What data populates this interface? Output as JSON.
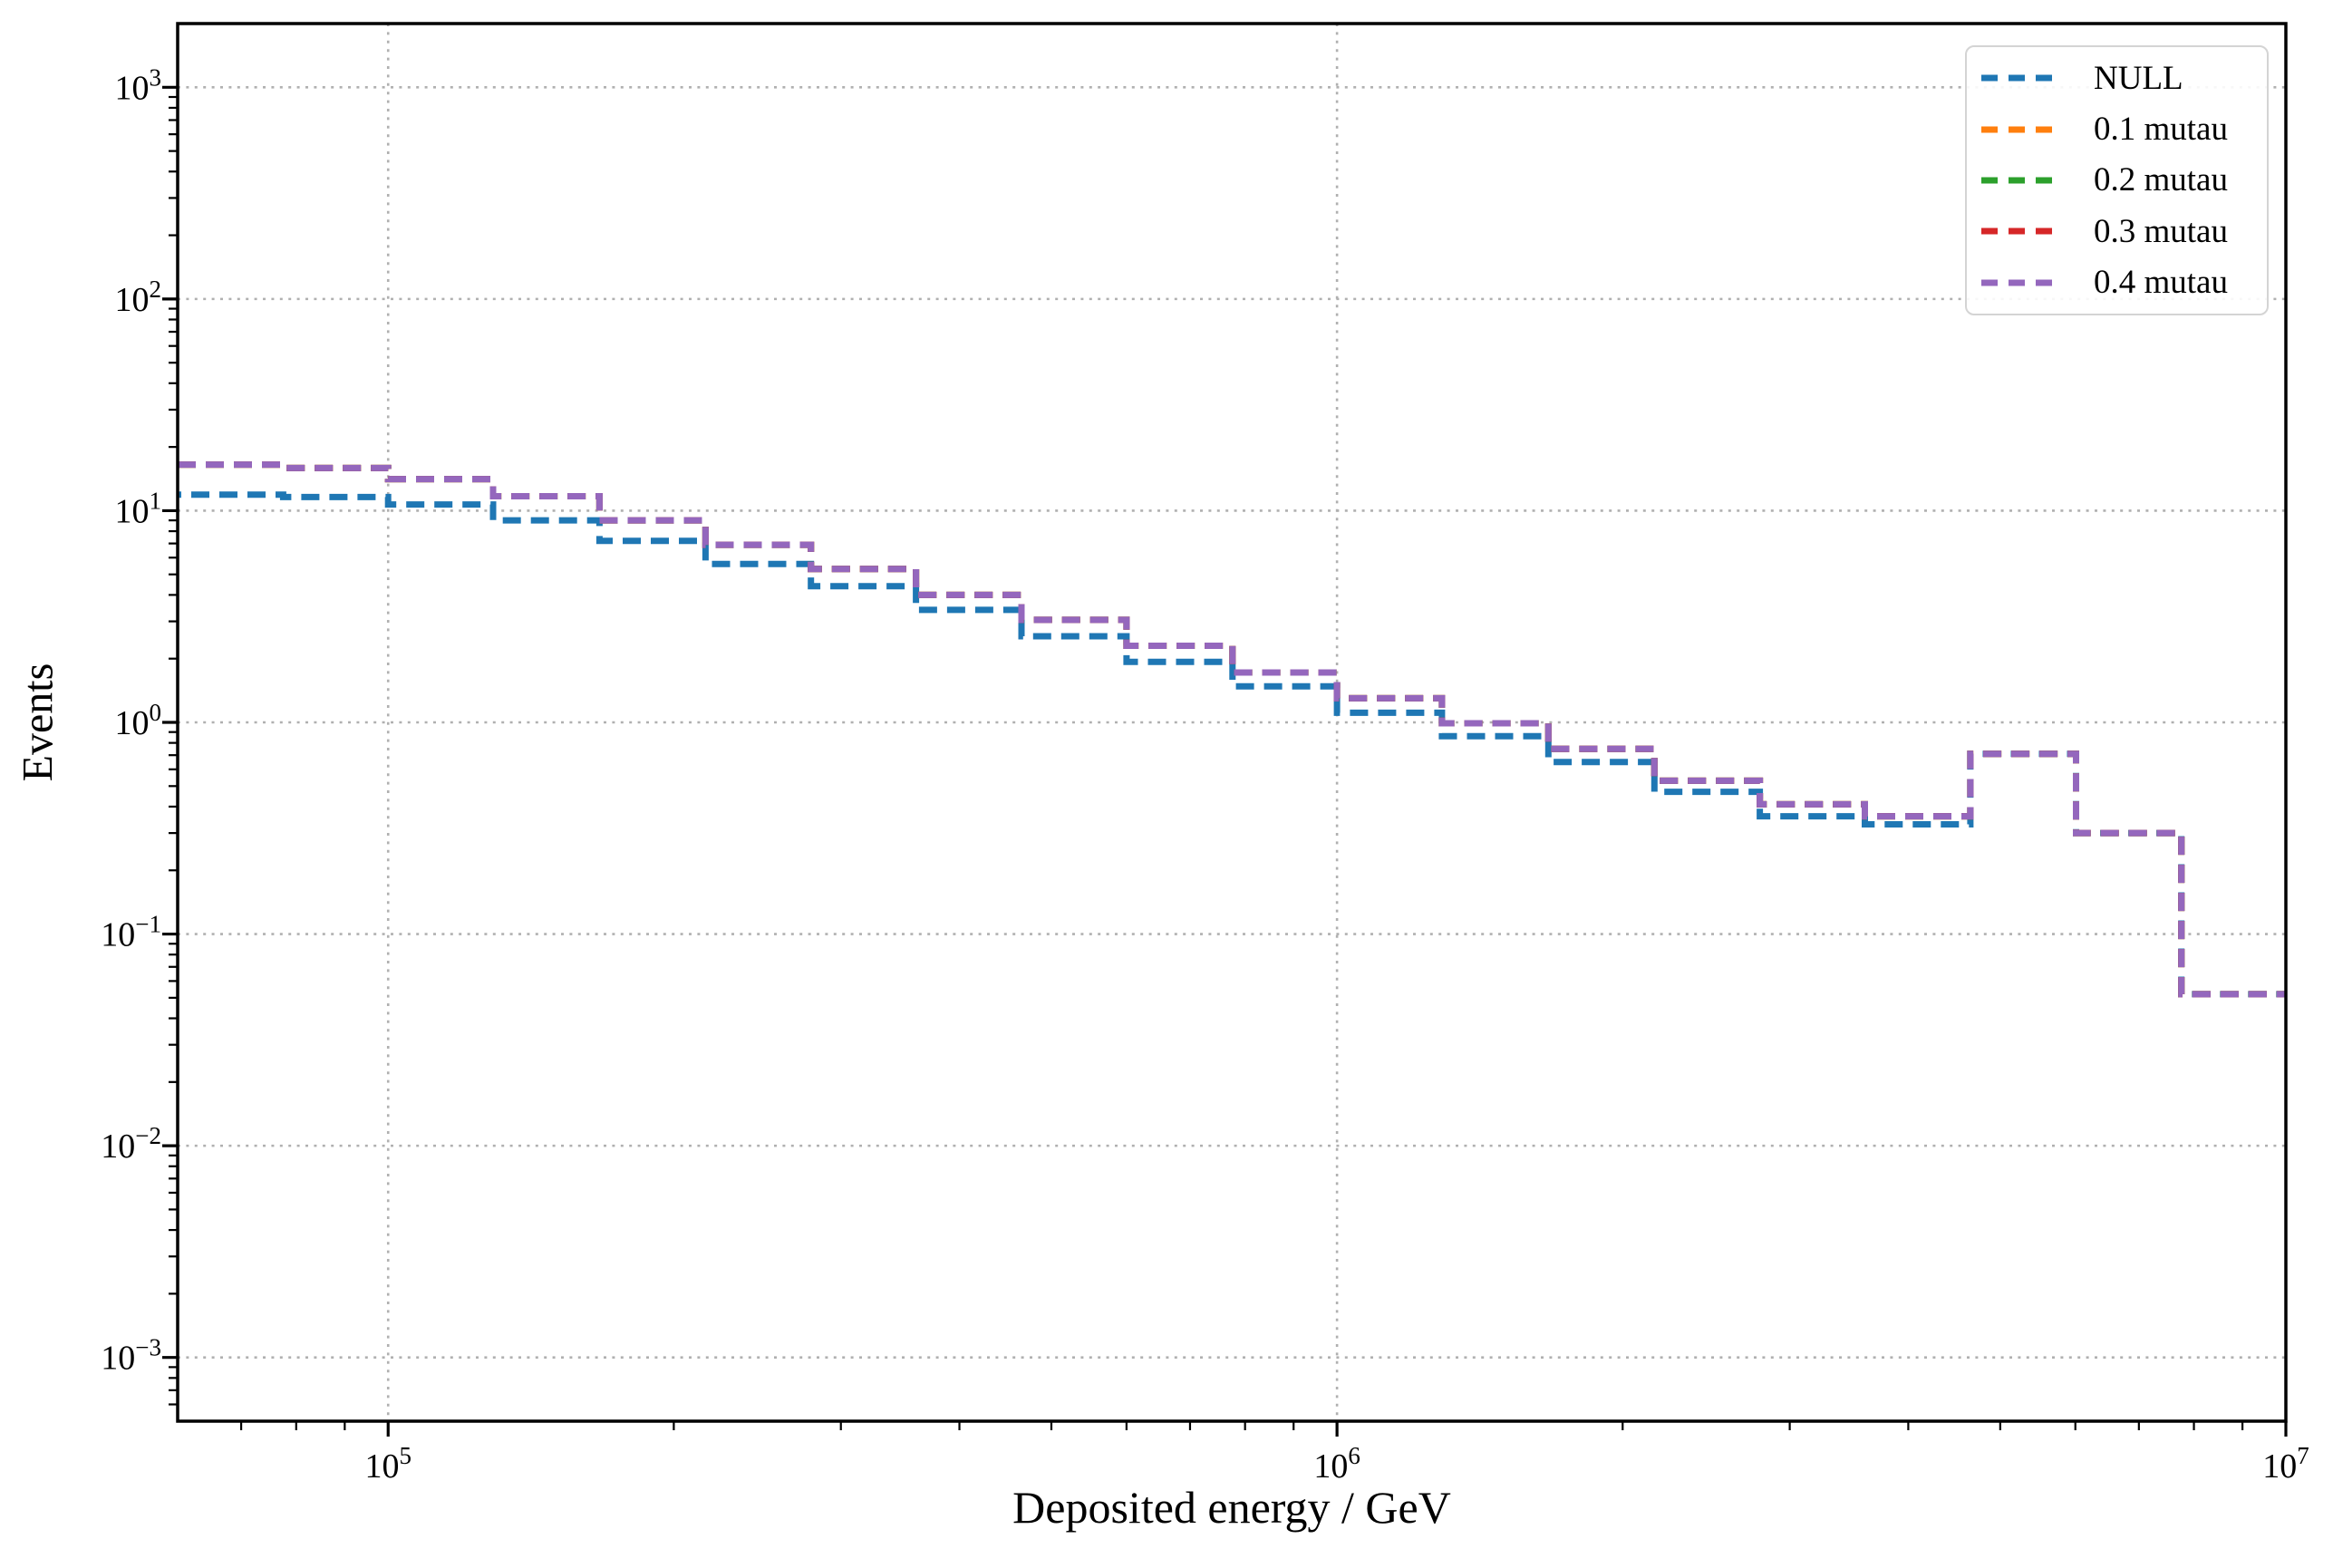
{
  "figure": {
    "xlabel": "Deposited energy / GeV",
    "ylabel": "Events",
    "background_color": "#ffffff",
    "spine_color": "#000000",
    "grid_color": "#b0b0b0",
    "x_tick_exponents": [
      5,
      6,
      7
    ],
    "y_tick_exponents": [
      3,
      2,
      1,
      0,
      -1,
      -2,
      -3
    ]
  },
  "chart_data": {
    "type": "line",
    "subtype": "step-histogram",
    "title": "",
    "xlabel": "Deposited energy / GeV",
    "ylabel": "Events",
    "xscale": "log",
    "yscale": "log",
    "xlim": [
      60000,
      10000000
    ],
    "ylim": [
      0.0005,
      2000
    ],
    "grid": "dotted, major gridlines both axes",
    "legend_position": "upper right",
    "line_style": "dashed",
    "bin_edges": [
      60000,
      77500,
      100000,
      129000,
      167000,
      216000,
      279000,
      360000,
      465000,
      600000,
      776000,
      1000000,
      1290000,
      1670000,
      2160000,
      2790000,
      3600000,
      4650000,
      6010000,
      7760000,
      10000000
    ],
    "series": [
      {
        "name": "NULL",
        "color": "#1f77b4",
        "values": [
          11.9,
          11.6,
          10.7,
          9.0,
          7.2,
          5.6,
          4.4,
          3.4,
          2.55,
          1.93,
          1.48,
          1.11,
          0.86,
          0.65,
          0.47,
          0.36,
          0.33,
          0.71,
          0.3,
          0.052
        ]
      },
      {
        "name": "0.1 mutau",
        "color": "#ff7f0e",
        "values": [
          16.5,
          15.9,
          14.1,
          11.7,
          9.0,
          6.9,
          5.3,
          4.0,
          3.05,
          2.3,
          1.72,
          1.3,
          0.99,
          0.75,
          0.53,
          0.41,
          0.36,
          0.71,
          0.3,
          0.052
        ]
      },
      {
        "name": "0.2 mutau",
        "color": "#2ca02c",
        "values": [
          16.5,
          15.9,
          14.1,
          11.7,
          9.0,
          6.9,
          5.3,
          4.0,
          3.05,
          2.3,
          1.72,
          1.3,
          0.99,
          0.75,
          0.53,
          0.41,
          0.36,
          0.71,
          0.3,
          0.052
        ]
      },
      {
        "name": "0.3 mutau",
        "color": "#d62728",
        "values": [
          16.5,
          15.9,
          14.1,
          11.7,
          9.0,
          6.9,
          5.3,
          4.0,
          3.05,
          2.3,
          1.72,
          1.3,
          0.99,
          0.75,
          0.53,
          0.41,
          0.36,
          0.71,
          0.3,
          0.052
        ]
      },
      {
        "name": "0.4 mutau",
        "color": "#9467bd",
        "values": [
          16.5,
          15.9,
          14.1,
          11.7,
          9.0,
          6.9,
          5.3,
          4.0,
          3.05,
          2.3,
          1.72,
          1.3,
          0.99,
          0.75,
          0.53,
          0.41,
          0.36,
          0.71,
          0.3,
          0.052
        ]
      }
    ]
  }
}
